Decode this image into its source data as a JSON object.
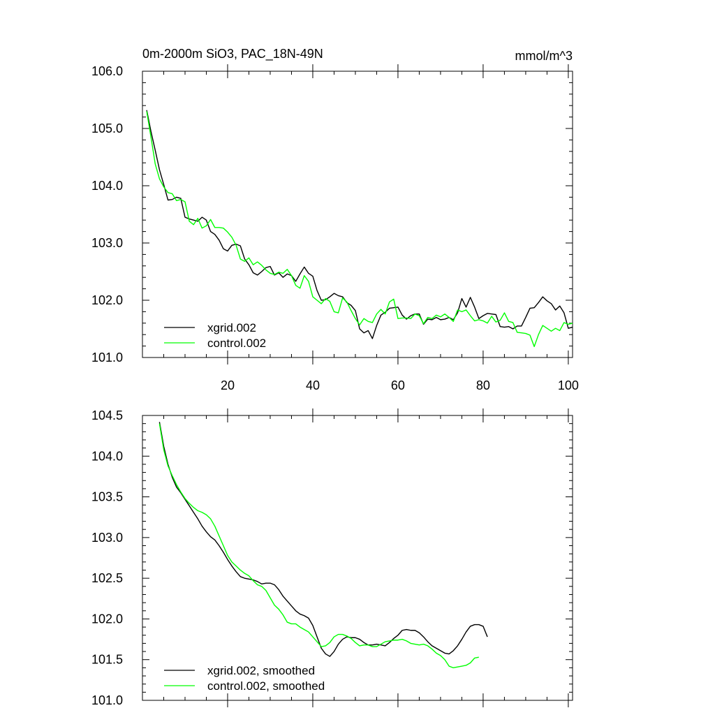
{
  "chart_data": [
    {
      "type": "line",
      "title": "0m-2000m SiO3, PAC_18N-49N",
      "units": "mmol/m^3",
      "xlim": [
        0,
        101
      ],
      "ylim": [
        101.0,
        106.0
      ],
      "xticks": [
        20,
        40,
        60,
        80,
        100
      ],
      "yticks": [
        101.0,
        102.0,
        103.0,
        104.0,
        105.0,
        106.0
      ],
      "ytick_labels": [
        "101.0",
        "102.0",
        "103.0",
        "104.0",
        "105.0",
        "106.0"
      ],
      "xtick_labels": [
        "20",
        "40",
        "60",
        "80",
        "100"
      ],
      "show_x_labels": true,
      "series": [
        {
          "name": "xgrid.002",
          "color": "#000000",
          "x_start": 1,
          "values": [
            105.32,
            104.95,
            104.62,
            104.28,
            104.02,
            103.75,
            103.76,
            103.8,
            103.78,
            103.45,
            103.42,
            103.4,
            103.38,
            103.45,
            103.4,
            103.2,
            103.15,
            103.05,
            102.9,
            102.86,
            102.96,
            102.98,
            102.95,
            102.72,
            102.62,
            102.48,
            102.44,
            102.5,
            102.57,
            102.59,
            102.44,
            102.48,
            102.4,
            102.46,
            102.43,
            102.33,
            102.46,
            102.58,
            102.47,
            102.42,
            102.17,
            102.0,
            102.01,
            102.06,
            102.12,
            102.08,
            102.06,
            101.96,
            101.91,
            101.82,
            101.5,
            101.43,
            101.47,
            101.33,
            101.56,
            101.74,
            101.79,
            101.86,
            101.87,
            101.88,
            101.74,
            101.67,
            101.73,
            101.76,
            101.76,
            101.58,
            101.67,
            101.66,
            101.7,
            101.66,
            101.67,
            101.7,
            101.66,
            101.78,
            102.03,
            101.88,
            102.05,
            101.88,
            101.68,
            101.73,
            101.77,
            101.76,
            101.75,
            101.54,
            101.53,
            101.54,
            101.5,
            101.55,
            101.55,
            101.7,
            101.86,
            101.87,
            101.96,
            102.06,
            101.99,
            101.94,
            101.83,
            101.9,
            101.78,
            101.51,
            101.53
          ]
        },
        {
          "name": "control.002",
          "color": "#00ff00",
          "x_start": 1,
          "values": [
            105.3,
            104.85,
            104.38,
            104.12,
            103.98,
            103.88,
            103.86,
            103.74,
            103.76,
            103.72,
            103.38,
            103.32,
            103.43,
            103.26,
            103.3,
            103.41,
            103.27,
            103.27,
            103.26,
            103.19,
            103.1,
            102.96,
            102.72,
            102.68,
            102.74,
            102.62,
            102.67,
            102.61,
            102.53,
            102.47,
            102.45,
            102.49,
            102.47,
            102.54,
            102.43,
            102.26,
            102.21,
            102.43,
            102.33,
            102.06,
            102.0,
            101.94,
            102.03,
            101.98,
            101.8,
            101.78,
            102.04,
            101.97,
            101.82,
            101.68,
            101.57,
            101.68,
            101.63,
            101.61,
            101.76,
            101.84,
            101.76,
            101.97,
            102.02,
            101.68,
            101.69,
            101.69,
            101.68,
            101.76,
            101.73,
            101.59,
            101.7,
            101.68,
            101.74,
            101.71,
            101.76,
            101.7,
            101.63,
            101.83,
            101.8,
            101.83,
            101.73,
            101.64,
            101.66,
            101.64,
            101.6,
            101.72,
            101.62,
            101.65,
            101.78,
            101.63,
            101.61,
            101.44,
            101.43,
            101.42,
            101.39,
            101.19,
            101.4,
            101.56,
            101.51,
            101.46,
            101.51,
            101.47,
            101.61,
            101.58,
            101.6
          ]
        }
      ]
    },
    {
      "type": "line",
      "title": "",
      "xlim": [
        0,
        101
      ],
      "ylim": [
        101.0,
        104.5
      ],
      "xticks": [
        20,
        40,
        60,
        80,
        100
      ],
      "yticks": [
        101.0,
        101.5,
        102.0,
        102.5,
        103.0,
        103.5,
        104.0,
        104.5
      ],
      "ytick_labels": [
        "101.0",
        "101.5",
        "102.0",
        "102.5",
        "103.0",
        "103.5",
        "104.0",
        "104.5"
      ],
      "xtick_labels": [],
      "show_x_labels": false,
      "series": [
        {
          "name": "xgrid.002, smoothed",
          "color": "#000000",
          "x_start": 4,
          "values": [
            104.42,
            104.12,
            103.9,
            103.74,
            103.62,
            103.55,
            103.47,
            103.39,
            103.31,
            103.23,
            103.14,
            103.07,
            103.01,
            102.97,
            102.9,
            102.82,
            102.73,
            102.65,
            102.58,
            102.52,
            102.5,
            102.49,
            102.48,
            102.46,
            102.43,
            102.44,
            102.44,
            102.42,
            102.36,
            102.28,
            102.22,
            102.16,
            102.1,
            102.06,
            102.04,
            102.01,
            101.92,
            101.78,
            101.64,
            101.57,
            101.54,
            101.6,
            101.69,
            101.75,
            101.78,
            101.77,
            101.77,
            101.75,
            101.71,
            101.68,
            101.68,
            101.69,
            101.68,
            101.67,
            101.71,
            101.76,
            101.8,
            101.86,
            101.87,
            101.86,
            101.86,
            101.83,
            101.78,
            101.72,
            101.67,
            101.64,
            101.61,
            101.58,
            101.57,
            101.61,
            101.67,
            101.75,
            101.84,
            101.91,
            101.93,
            101.93,
            101.91,
            101.78
          ]
        },
        {
          "name": "control.002, smoothed",
          "color": "#00ff00",
          "x_start": 4,
          "values": [
            104.4,
            104.08,
            103.88,
            103.76,
            103.65,
            103.56,
            103.48,
            103.42,
            103.37,
            103.33,
            103.31,
            103.28,
            103.23,
            103.14,
            103.02,
            102.9,
            102.78,
            102.7,
            102.65,
            102.6,
            102.56,
            102.53,
            102.47,
            102.42,
            102.4,
            102.35,
            102.26,
            102.17,
            102.12,
            102.05,
            101.96,
            101.94,
            101.94,
            101.9,
            101.87,
            101.84,
            101.78,
            101.72,
            101.66,
            101.67,
            101.71,
            101.78,
            101.81,
            101.81,
            101.79,
            101.76,
            101.71,
            101.67,
            101.68,
            101.68,
            101.66,
            101.66,
            101.69,
            101.72,
            101.73,
            101.74,
            101.74,
            101.75,
            101.73,
            101.7,
            101.69,
            101.68,
            101.69,
            101.67,
            101.63,
            101.58,
            101.55,
            101.5,
            101.42,
            101.4,
            101.41,
            101.42,
            101.43,
            101.46,
            101.52,
            101.53
          ]
        }
      ]
    }
  ]
}
